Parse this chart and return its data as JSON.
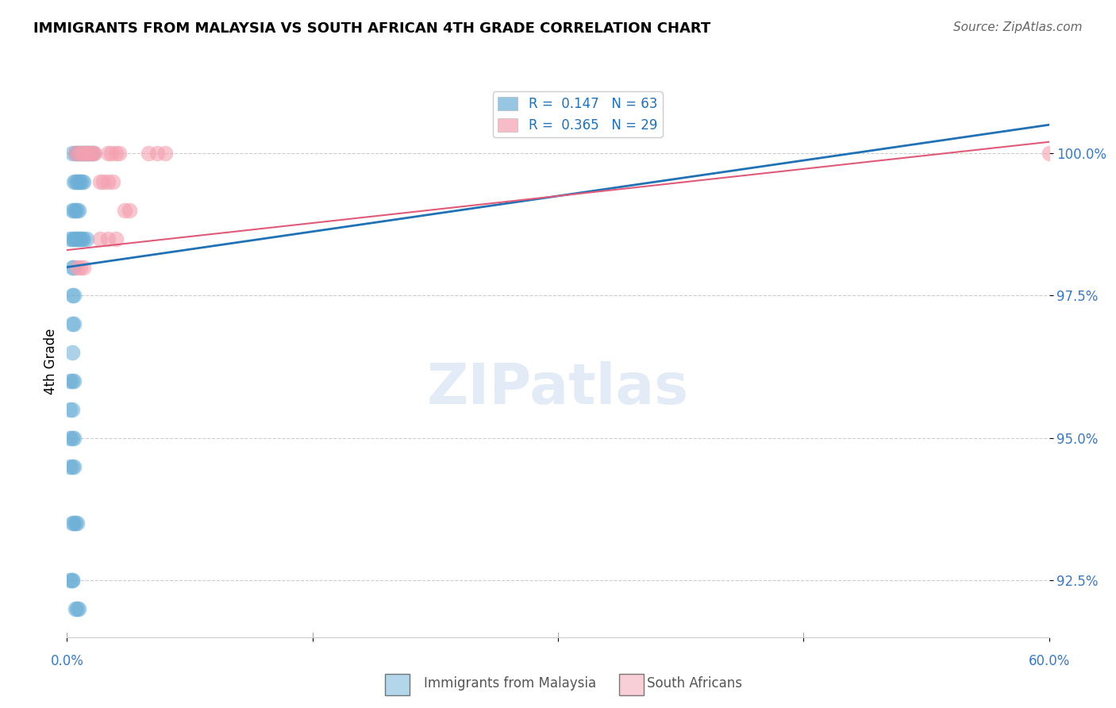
{
  "title": "IMMIGRANTS FROM MALAYSIA VS SOUTH AFRICAN 4TH GRADE CORRELATION CHART",
  "source": "Source: ZipAtlas.com",
  "ylabel": "4th Grade",
  "ytick_labels": [
    "92.5%",
    "95.0%",
    "97.5%",
    "100.0%"
  ],
  "ytick_values": [
    92.5,
    95.0,
    97.5,
    100.0
  ],
  "xlim": [
    0.0,
    60.0
  ],
  "ylim": [
    91.5,
    101.2
  ],
  "legend_entry1": "R =  0.147   N = 63",
  "legend_entry2": "R =  0.365   N = 29",
  "blue_color": "#6baed6",
  "pink_color": "#f4a0b0",
  "blue_line_color": "#2171b5",
  "pink_line_color": "#e05a7a",
  "blue_dots_x": [
    0.3,
    0.5,
    0.6,
    0.7,
    0.8,
    0.9,
    1.0,
    1.1,
    1.2,
    1.3,
    1.4,
    1.5,
    1.6,
    0.4,
    0.5,
    0.6,
    0.7,
    0.8,
    0.9,
    1.0,
    0.3,
    0.4,
    0.5,
    0.6,
    0.7,
    0.2,
    0.3,
    0.4,
    0.5,
    0.6,
    0.7,
    0.8,
    0.9,
    1.0,
    1.2,
    0.3,
    0.4,
    0.3,
    0.4,
    0.3,
    0.4,
    0.3,
    0.2,
    0.3,
    0.4,
    0.2,
    0.3,
    0.2,
    0.3,
    0.4,
    0.2,
    0.3,
    0.4,
    0.3,
    0.4,
    0.5,
    0.6,
    0.3,
    0.2,
    0.3,
    0.5,
    0.6,
    0.7
  ],
  "blue_dots_y": [
    100.0,
    100.0,
    100.0,
    100.0,
    100.0,
    100.0,
    100.0,
    100.0,
    100.0,
    100.0,
    100.0,
    100.0,
    100.0,
    99.5,
    99.5,
    99.5,
    99.5,
    99.5,
    99.5,
    99.5,
    99.0,
    99.0,
    99.0,
    99.0,
    99.0,
    98.5,
    98.5,
    98.5,
    98.5,
    98.5,
    98.5,
    98.5,
    98.5,
    98.5,
    98.5,
    98.0,
    98.0,
    97.5,
    97.5,
    97.0,
    97.0,
    96.5,
    96.0,
    96.0,
    96.0,
    95.5,
    95.5,
    95.0,
    95.0,
    95.0,
    94.5,
    94.5,
    94.5,
    93.5,
    93.5,
    93.5,
    93.5,
    92.5,
    92.5,
    92.5,
    92.0,
    92.0,
    92.0
  ],
  "pink_dots_x": [
    0.5,
    0.7,
    0.9,
    1.0,
    1.2,
    1.3,
    1.5,
    1.6,
    1.7,
    2.5,
    2.7,
    3.0,
    3.2,
    5.0,
    5.5,
    6.0,
    2.0,
    2.2,
    2.5,
    2.8,
    3.5,
    3.8,
    2.0,
    2.5,
    3.0,
    0.6,
    0.8,
    1.0,
    60.0
  ],
  "pink_dots_y": [
    100.0,
    100.0,
    100.0,
    100.0,
    100.0,
    100.0,
    100.0,
    100.0,
    100.0,
    100.0,
    100.0,
    100.0,
    100.0,
    100.0,
    100.0,
    100.0,
    99.5,
    99.5,
    99.5,
    99.5,
    99.0,
    99.0,
    98.5,
    98.5,
    98.5,
    98.0,
    98.0,
    98.0,
    100.0
  ],
  "blue_trend_x": [
    0.0,
    60.0
  ],
  "blue_trend_y": [
    98.0,
    100.5
  ],
  "pink_trend_x": [
    0.0,
    60.0
  ],
  "pink_trend_y": [
    98.3,
    100.2
  ]
}
